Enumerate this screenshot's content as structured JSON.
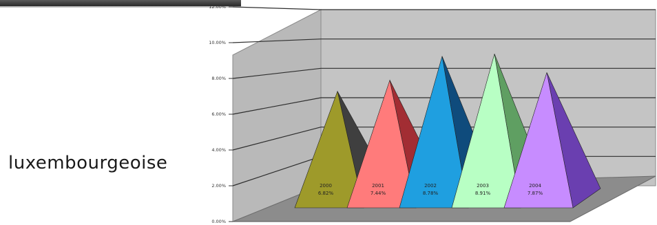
{
  "side_label": "luxembourgeoise",
  "chart_data": {
    "type": "bar",
    "style": "3d-pyramid",
    "categories": [
      "2000",
      "2001",
      "2002",
      "2003",
      "2004"
    ],
    "values": [
      6.82,
      7.44,
      8.78,
      8.91,
      7.87
    ],
    "value_labels": [
      "6.82%",
      "7.44%",
      "8.78%",
      "8.91%",
      "7.87%"
    ],
    "y_ticks": [
      "0.00%",
      "2.00%",
      "4.00%",
      "6.00%",
      "8.00%",
      "10.00%",
      "12.00%"
    ],
    "ylim": [
      0,
      12
    ],
    "grid": true,
    "colors": [
      "#9e9a2a",
      "#ff7b7b",
      "#1f9fe0",
      "#b8ffc4",
      "#c78cff"
    ],
    "dark_colors": [
      "#3f3f3f",
      "#a22d33",
      "#0f4b7c",
      "#5f9f62",
      "#6a3fb0"
    ]
  }
}
